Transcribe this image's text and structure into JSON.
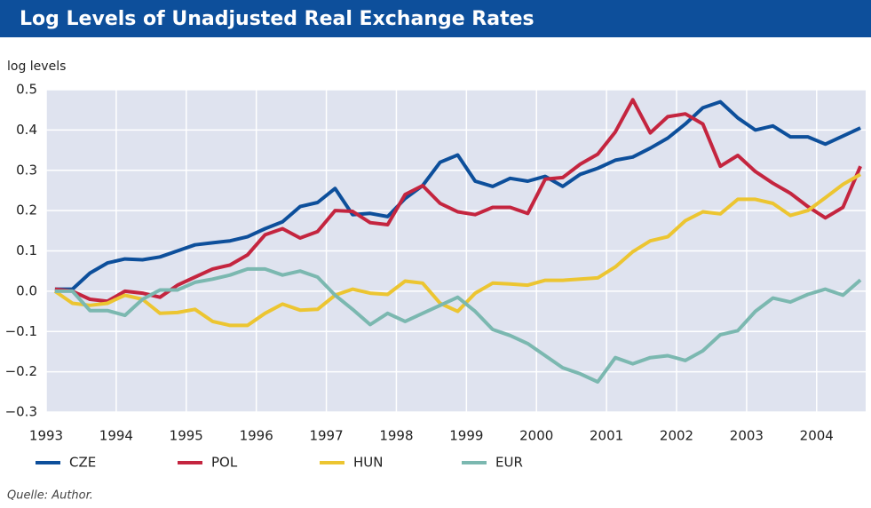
{
  "chart_data": {
    "type": "line",
    "title": "Log Levels of Unadjusted Real Exchange Rates",
    "y_label": "log levels",
    "note": "Quelle: Author.",
    "x": [
      1993.125,
      1993.375,
      1993.625,
      1993.875,
      1994.125,
      1994.375,
      1994.625,
      1994.875,
      1995.125,
      1995.375,
      1995.625,
      1995.875,
      1996.125,
      1996.375,
      1996.625,
      1996.875,
      1997.125,
      1997.375,
      1997.625,
      1997.875,
      1998.125,
      1998.375,
      1998.625,
      1998.875,
      1999.125,
      1999.375,
      1999.625,
      1999.875,
      2000.125,
      2000.375,
      2000.625,
      2000.875,
      2001.125,
      2001.375,
      2001.625,
      2001.875,
      2002.125,
      2002.375,
      2002.625,
      2002.875,
      2003.125,
      2003.375,
      2003.625,
      2003.875,
      2004.125,
      2004.375,
      2004.625
    ],
    "series": [
      {
        "name": "CZE",
        "color": "#0d4f9b",
        "values": [
          0.005,
          0.005,
          0.045,
          0.07,
          0.08,
          0.078,
          0.085,
          0.1,
          0.115,
          0.12,
          0.125,
          0.135,
          0.155,
          0.172,
          0.21,
          0.22,
          0.255,
          0.19,
          0.193,
          0.185,
          0.23,
          0.262,
          0.32,
          0.338,
          0.273,
          0.26,
          0.28,
          0.273,
          0.285,
          0.26,
          0.29,
          0.305,
          0.325,
          0.333,
          0.355,
          0.38,
          0.415,
          0.455,
          0.47,
          0.43,
          0.4,
          0.41,
          0.383,
          0.383,
          0.365,
          0.385,
          0.405
        ]
      },
      {
        "name": "POL",
        "color": "#c4253f",
        "values": [
          0.005,
          0.0,
          -0.02,
          -0.025,
          0.0,
          -0.005,
          -0.015,
          0.015,
          0.035,
          0.055,
          0.065,
          0.09,
          0.14,
          0.155,
          0.132,
          0.148,
          0.2,
          0.198,
          0.17,
          0.165,
          0.24,
          0.262,
          0.218,
          0.197,
          0.19,
          0.208,
          0.208,
          0.193,
          0.278,
          0.282,
          0.315,
          0.34,
          0.395,
          0.475,
          0.393,
          0.433,
          0.44,
          0.415,
          0.31,
          0.337,
          0.297,
          0.268,
          0.243,
          0.21,
          0.182,
          0.208,
          0.31
        ]
      },
      {
        "name": "HUN",
        "color": "#ecc531",
        "values": [
          0.0,
          -0.03,
          -0.035,
          -0.03,
          -0.01,
          -0.02,
          -0.055,
          -0.053,
          -0.045,
          -0.075,
          -0.085,
          -0.085,
          -0.055,
          -0.032,
          -0.047,
          -0.045,
          -0.01,
          0.005,
          -0.005,
          -0.008,
          0.025,
          0.02,
          -0.03,
          -0.05,
          -0.005,
          0.02,
          0.018,
          0.015,
          0.027,
          0.027,
          0.03,
          0.033,
          0.06,
          0.098,
          0.125,
          0.135,
          0.175,
          0.197,
          0.192,
          0.228,
          0.228,
          0.218,
          0.188,
          0.2,
          0.232,
          0.265,
          0.29
        ]
      },
      {
        "name": "EUR",
        "color": "#7bb8b0",
        "values": [
          0.0,
          0.0,
          -0.048,
          -0.048,
          -0.06,
          -0.02,
          0.003,
          0.003,
          0.022,
          0.03,
          0.04,
          0.055,
          0.055,
          0.04,
          0.05,
          0.035,
          -0.01,
          -0.045,
          -0.083,
          -0.055,
          -0.075,
          -0.055,
          -0.035,
          -0.015,
          -0.05,
          -0.095,
          -0.11,
          -0.13,
          -0.16,
          -0.19,
          -0.205,
          -0.225,
          -0.165,
          -0.18,
          -0.165,
          -0.16,
          -0.172,
          -0.148,
          -0.108,
          -0.098,
          -0.05,
          -0.017,
          -0.027,
          -0.008,
          0.005,
          -0.01,
          0.028
        ]
      }
    ],
    "xlim": [
      1993,
      2004.7
    ],
    "xticks": [
      1993,
      1994,
      1995,
      1996,
      1997,
      1998,
      1999,
      2000,
      2001,
      2002,
      2003,
      2004
    ],
    "ylim": [
      -0.3,
      0.5
    ],
    "yticks": [
      {
        "value": -0.3,
        "label": "−0.3"
      },
      {
        "value": -0.2,
        "label": "−0.2"
      },
      {
        "value": -0.1,
        "label": "−0.1"
      },
      {
        "value": 0,
        "label": "0.0"
      },
      0.1,
      0.2,
      0.3,
      0.4,
      0.5
    ],
    "grid": true
  }
}
